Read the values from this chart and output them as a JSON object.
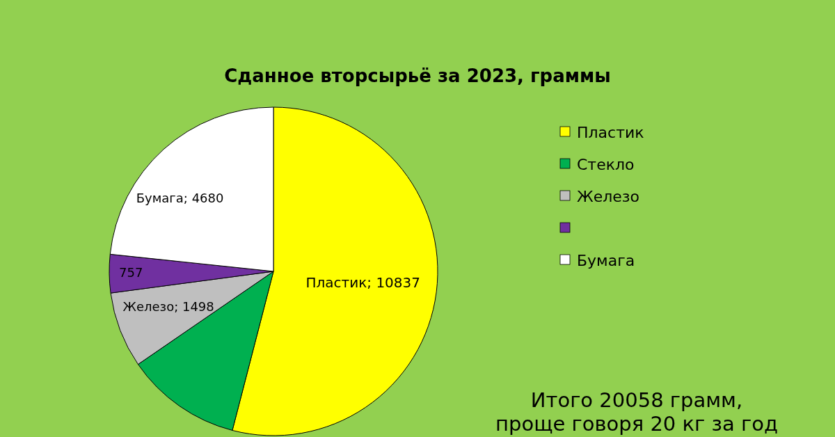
{
  "chart_data": {
    "type": "pie",
    "title": "Сданное вторсырьё за 2023, граммы",
    "categories": [
      "Пластик",
      "Стекло",
      "Железо",
      null,
      "Бумага"
    ],
    "values": [
      10837,
      2286,
      1498,
      757,
      4680
    ],
    "colors": [
      "#ffff00",
      "#00b050",
      "#bfbfbf",
      "#7030a0",
      "#ffffff"
    ],
    "value_labels": [
      "Пластик; 10837",
      null,
      "Железо; 1498",
      "757",
      "Бумага; 4680"
    ],
    "legend": "right",
    "annotations": [
      "Итого 20058 грамм,",
      "проще говоря 20 кг за год"
    ]
  }
}
